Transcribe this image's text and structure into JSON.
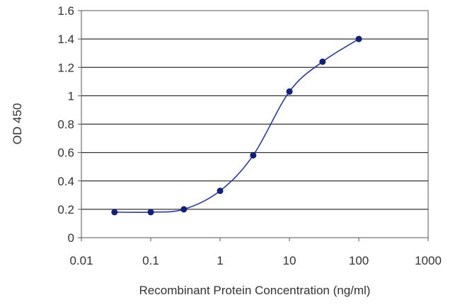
{
  "chart_data": {
    "type": "line",
    "title": "",
    "xlabel": "Recombinant Protein Concentration (ng/ml)",
    "ylabel": "OD 450",
    "x_scale": "log",
    "xlim": [
      0.01,
      1000
    ],
    "ylim": [
      0,
      1.6
    ],
    "x_ticks": [
      0.01,
      0.1,
      1,
      10,
      100,
      1000
    ],
    "x_tick_labels": [
      "0.01",
      "0.1",
      "1",
      "10",
      "100",
      "1000"
    ],
    "y_ticks": [
      0,
      0.2,
      0.4,
      0.6,
      0.8,
      1,
      1.2,
      1.4,
      1.6
    ],
    "y_tick_labels": [
      "0",
      "0.2",
      "0.4",
      "0.6",
      "0.8",
      "1",
      "1.2",
      "1.4",
      "1.6"
    ],
    "grid": "horizontal",
    "legend": "none",
    "series": [
      {
        "x": [
          0.03,
          0.1,
          0.3,
          1,
          3,
          10,
          30,
          100
        ],
        "y": [
          0.18,
          0.18,
          0.2,
          0.33,
          0.58,
          1.03,
          1.24,
          1.4
        ],
        "color": "#2b3a9e",
        "marker_color": "#12207a"
      }
    ]
  }
}
